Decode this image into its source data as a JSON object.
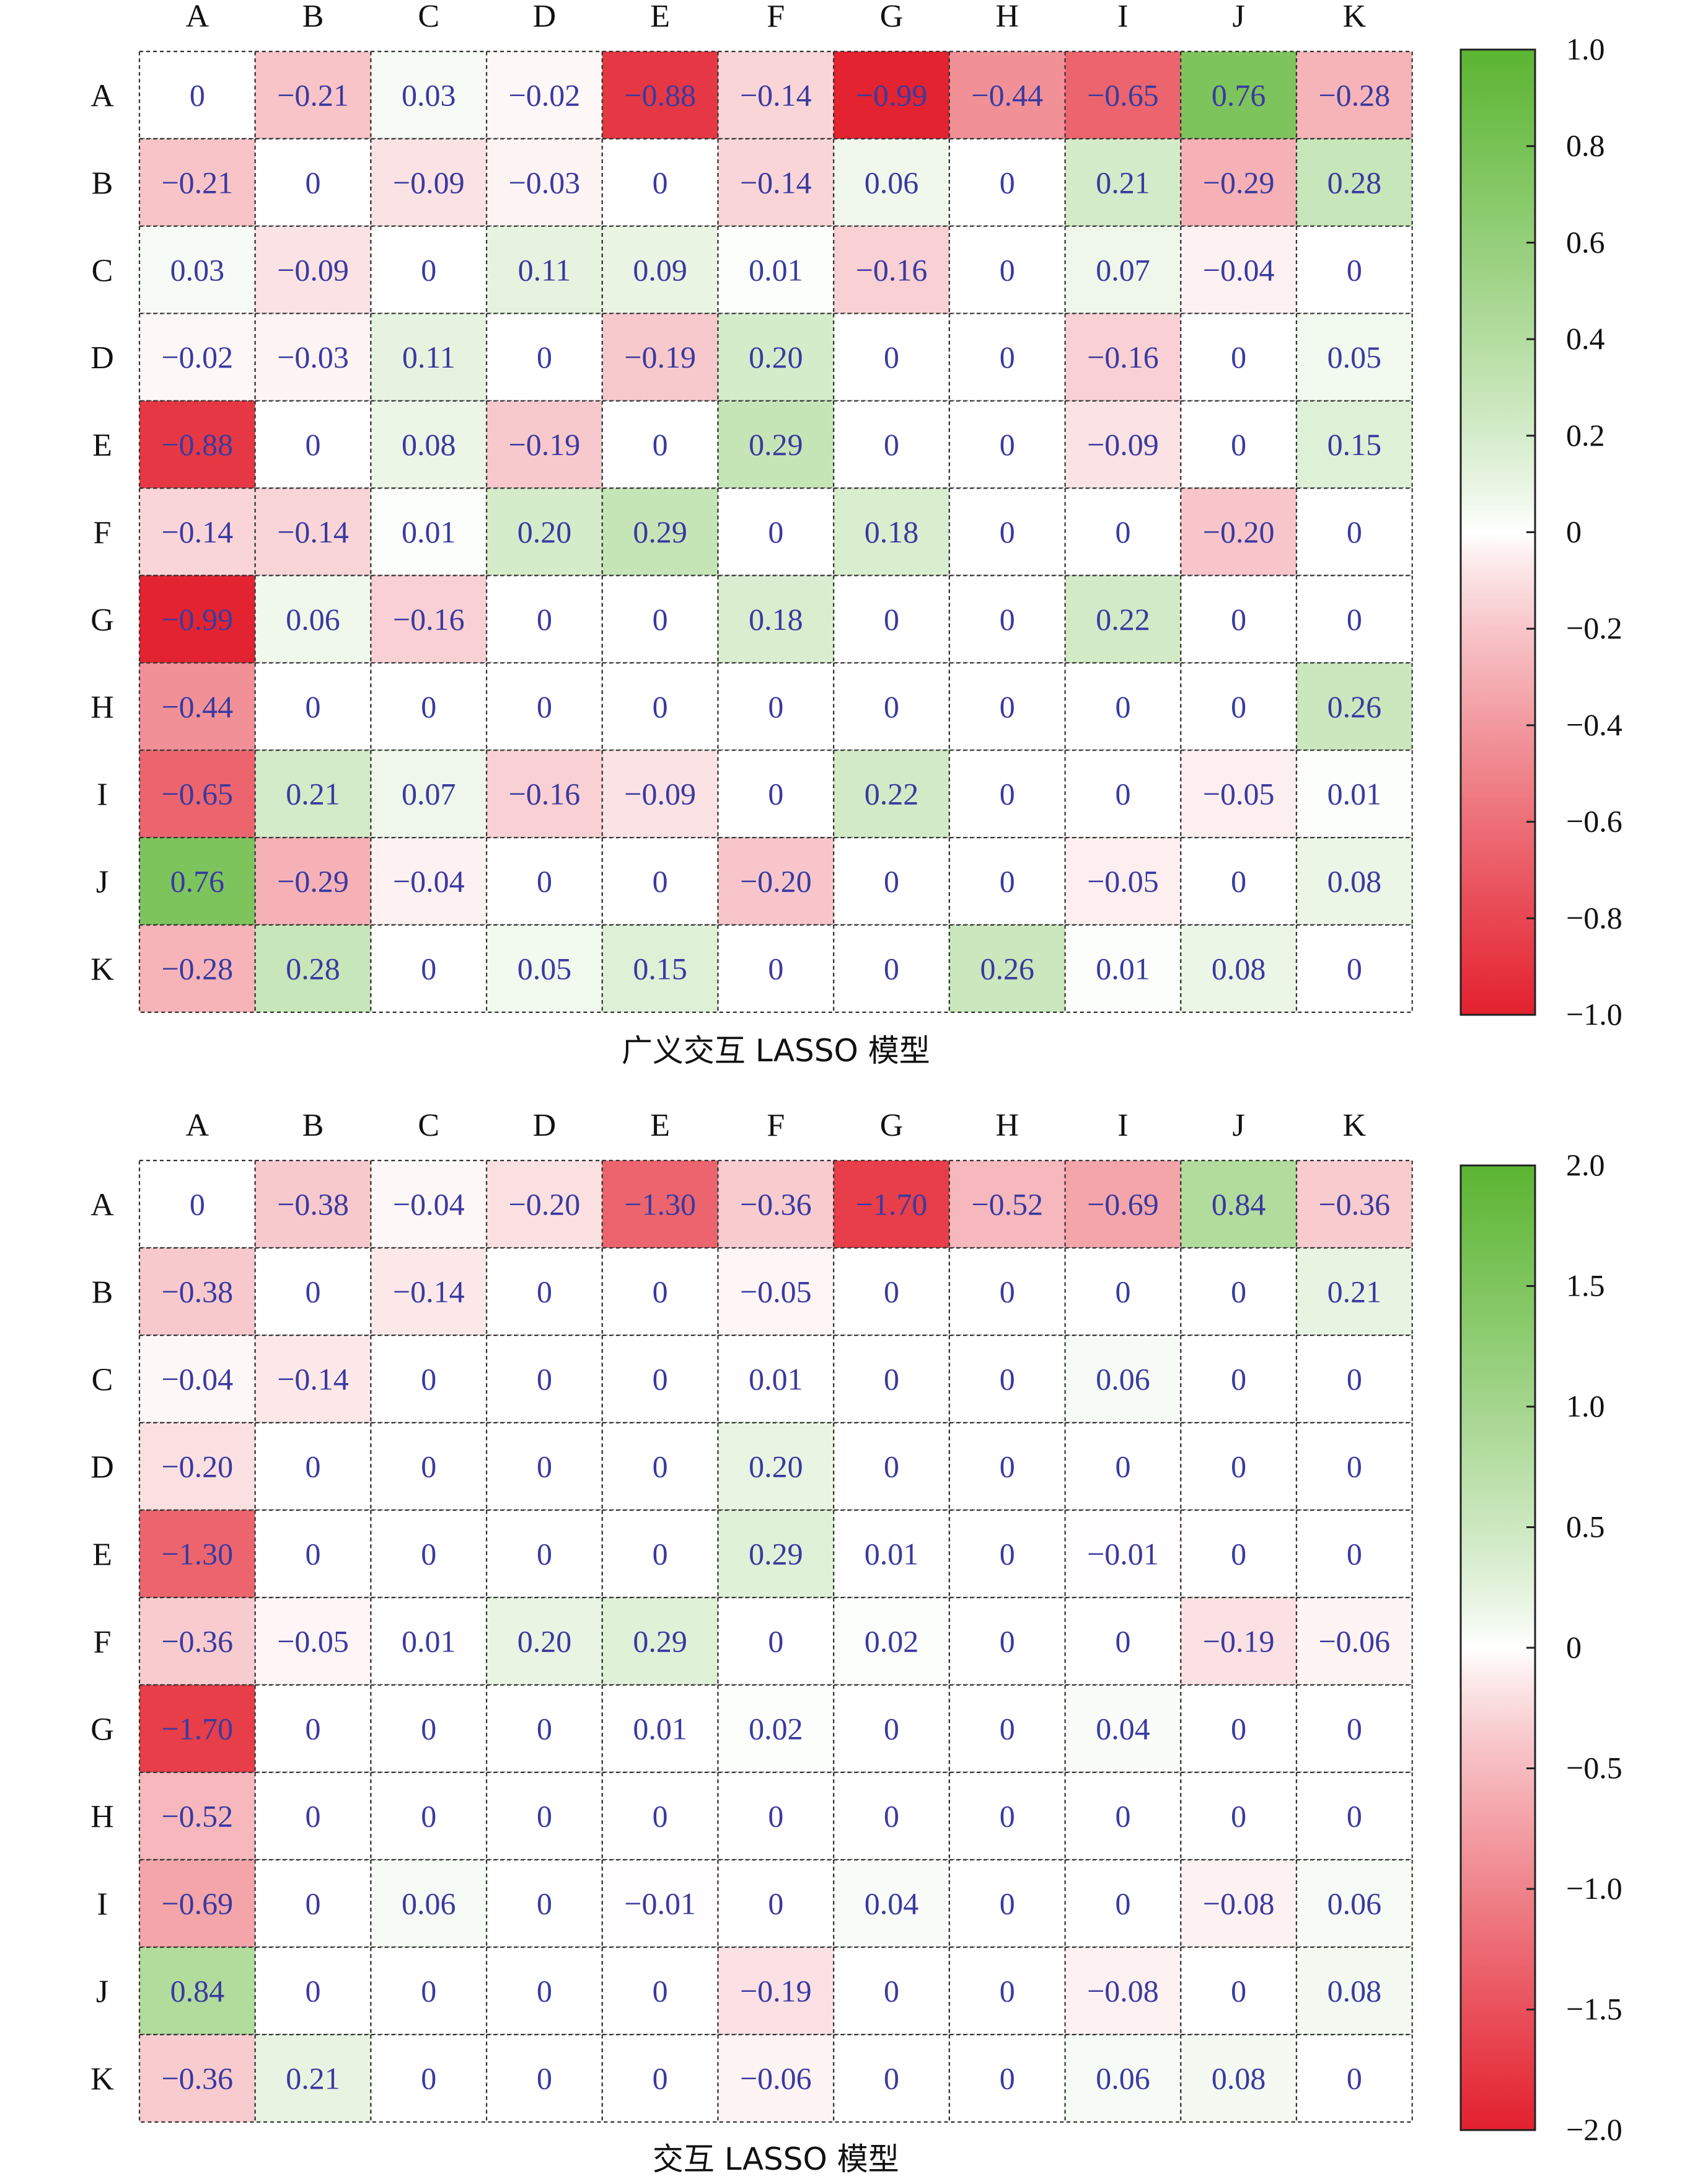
{
  "colors": {
    "positive": "#5bb531",
    "zero": "#ffffff",
    "negative": "#e3212e",
    "cell_text": "#3a3aa0",
    "grid_line": "#333333"
  },
  "chart_data": [
    {
      "type": "heatmap",
      "title": "广义交互 LASSO 模型",
      "xlabel": "",
      "ylabel": "",
      "x_categories": [
        "A",
        "B",
        "C",
        "D",
        "E",
        "F",
        "G",
        "H",
        "I",
        "J",
        "K"
      ],
      "y_categories": [
        "A",
        "B",
        "C",
        "D",
        "E",
        "F",
        "G",
        "H",
        "I",
        "J",
        "K"
      ],
      "values": [
        [
          0,
          -0.21,
          0.03,
          -0.02,
          -0.88,
          -0.14,
          -0.99,
          -0.44,
          -0.65,
          0.76,
          -0.28
        ],
        [
          -0.21,
          0,
          -0.09,
          -0.03,
          0,
          -0.14,
          0.06,
          0,
          0.21,
          -0.29,
          0.28
        ],
        [
          0.03,
          -0.09,
          0,
          0.11,
          0.09,
          0.01,
          -0.16,
          0,
          0.07,
          -0.04,
          0
        ],
        [
          -0.02,
          -0.03,
          0.11,
          0,
          -0.19,
          0.2,
          0,
          0,
          -0.16,
          0,
          0.05
        ],
        [
          -0.88,
          0,
          0.08,
          -0.19,
          0,
          0.29,
          0,
          0,
          -0.09,
          0,
          0.15
        ],
        [
          -0.14,
          -0.14,
          0.01,
          0.2,
          0.29,
          0,
          0.18,
          0,
          0,
          -0.2,
          0
        ],
        [
          -0.99,
          0.06,
          -0.16,
          0,
          0,
          0.18,
          0,
          0,
          0.22,
          0,
          0
        ],
        [
          -0.44,
          0,
          0,
          0,
          0,
          0,
          0,
          0,
          0,
          0,
          0.26
        ],
        [
          -0.65,
          0.21,
          0.07,
          -0.16,
          -0.09,
          0,
          0.22,
          0,
          0,
          -0.05,
          0.01
        ],
        [
          0.76,
          -0.29,
          -0.04,
          0,
          0,
          -0.2,
          0,
          0,
          -0.05,
          0,
          0.08
        ],
        [
          -0.28,
          0.28,
          0,
          0.05,
          0.15,
          0,
          0,
          0.26,
          0.01,
          0.08,
          0
        ]
      ],
      "cell_labels": [
        [
          "0",
          "−0.21",
          "0.03",
          "−0.02",
          "−0.88",
          "−0.14",
          "−0.99",
          "−0.44",
          "−0.65",
          "0.76",
          "−0.28"
        ],
        [
          "−0.21",
          "0",
          "−0.09",
          "−0.03",
          "0",
          "−0.14",
          "0.06",
          "0",
          "0.21",
          "−0.29",
          "0.28"
        ],
        [
          "0.03",
          "−0.09",
          "0",
          "0.11",
          "0.09",
          "0.01",
          "−0.16",
          "0",
          "0.07",
          "−0.04",
          "0"
        ],
        [
          "−0.02",
          "−0.03",
          "0.11",
          "0",
          "−0.19",
          "0.20",
          "0",
          "0",
          "−0.16",
          "0",
          "0.05"
        ],
        [
          "−0.88",
          "0",
          "0.08",
          "−0.19",
          "0",
          "0.29",
          "0",
          "0",
          "−0.09",
          "0",
          "0.15"
        ],
        [
          "−0.14",
          "−0.14",
          "0.01",
          "0.20",
          "0.29",
          "0",
          "0.18",
          "0",
          "0",
          "−0.20",
          "0"
        ],
        [
          "−0.99",
          "0.06",
          "−0.16",
          "0",
          "0",
          "0.18",
          "0",
          "0",
          "0.22",
          "0",
          "0"
        ],
        [
          "−0.44",
          "0",
          "0",
          "0",
          "0",
          "0",
          "0",
          "0",
          "0",
          "0",
          "0.26"
        ],
        [
          "−0.65",
          "0.21",
          "0.07",
          "−0.16",
          "−0.09",
          "0",
          "0.22",
          "0",
          "0",
          "−0.05",
          "0.01"
        ],
        [
          "0.76",
          "−0.29",
          "−0.04",
          "0",
          "0",
          "−0.20",
          "0",
          "0",
          "−0.05",
          "0",
          "0.08"
        ],
        [
          "−0.28",
          "0.28",
          "0",
          "0.05",
          "0.15",
          "0",
          "0",
          "0.26",
          "0.01",
          "0.08",
          "0"
        ]
      ],
      "colorbar": {
        "range": [
          -1.0,
          1.0
        ],
        "ticks": [
          1.0,
          0.8,
          0.6,
          0.4,
          0.2,
          0,
          -0.2,
          -0.4,
          -0.6,
          -0.8,
          -1.0
        ],
        "tick_labels": [
          "1.0",
          "0.8",
          "0.6",
          "0.4",
          "0.2",
          "0",
          "−0.2",
          "−0.4",
          "−0.6",
          "−0.8",
          "−1.0"
        ]
      },
      "grid": true,
      "legend": "right"
    },
    {
      "type": "heatmap",
      "title": "交互 LASSO 模型",
      "xlabel": "",
      "ylabel": "",
      "x_categories": [
        "A",
        "B",
        "C",
        "D",
        "E",
        "F",
        "G",
        "H",
        "I",
        "J",
        "K"
      ],
      "y_categories": [
        "A",
        "B",
        "C",
        "D",
        "E",
        "F",
        "G",
        "H",
        "I",
        "J",
        "K"
      ],
      "values": [
        [
          0,
          -0.38,
          -0.04,
          -0.2,
          -1.3,
          -0.36,
          -1.7,
          -0.52,
          -0.69,
          0.84,
          -0.36
        ],
        [
          -0.38,
          0,
          -0.14,
          0,
          0,
          -0.05,
          0,
          0,
          0,
          0,
          0.21
        ],
        [
          -0.04,
          -0.14,
          0,
          0,
          0,
          0.01,
          0,
          0,
          0.06,
          0,
          0
        ],
        [
          -0.2,
          0,
          0,
          0,
          0,
          0.2,
          0,
          0,
          0,
          0,
          0
        ],
        [
          -1.3,
          0,
          0,
          0,
          0,
          0.29,
          0.01,
          0,
          -0.01,
          0,
          0
        ],
        [
          -0.36,
          -0.05,
          0.01,
          0.2,
          0.29,
          0,
          0.02,
          0,
          0,
          -0.19,
          -0.06
        ],
        [
          -1.7,
          0,
          0,
          0,
          0.01,
          0.02,
          0,
          0,
          0.04,
          0,
          0
        ],
        [
          -0.52,
          0,
          0,
          0,
          0,
          0,
          0,
          0,
          0,
          0,
          0
        ],
        [
          -0.69,
          0,
          0.06,
          0,
          -0.01,
          0,
          0.04,
          0,
          0,
          -0.08,
          0.06
        ],
        [
          0.84,
          0,
          0,
          0,
          0,
          -0.19,
          0,
          0,
          -0.08,
          0,
          0.08
        ],
        [
          -0.36,
          0.21,
          0,
          0,
          0,
          -0.06,
          0,
          0,
          0.06,
          0.08,
          0
        ]
      ],
      "cell_labels": [
        [
          "0",
          "−0.38",
          "−0.04",
          "−0.20",
          "−1.30",
          "−0.36",
          "−1.70",
          "−0.52",
          "−0.69",
          "0.84",
          "−0.36"
        ],
        [
          "−0.38",
          "0",
          "−0.14",
          "0",
          "0",
          "−0.05",
          "0",
          "0",
          "0",
          "0",
          "0.21"
        ],
        [
          "−0.04",
          "−0.14",
          "0",
          "0",
          "0",
          "0.01",
          "0",
          "0",
          "0.06",
          "0",
          "0"
        ],
        [
          "−0.20",
          "0",
          "0",
          "0",
          "0",
          "0.20",
          "0",
          "0",
          "0",
          "0",
          "0"
        ],
        [
          "−1.30",
          "0",
          "0",
          "0",
          "0",
          "0.29",
          "0.01",
          "0",
          "−0.01",
          "0",
          "0"
        ],
        [
          "−0.36",
          "−0.05",
          "0.01",
          "0.20",
          "0.29",
          "0",
          "0.02",
          "0",
          "0",
          "−0.19",
          "−0.06"
        ],
        [
          "−1.70",
          "0",
          "0",
          "0",
          "0.01",
          "0.02",
          "0",
          "0",
          "0.04",
          "0",
          "0"
        ],
        [
          "−0.52",
          "0",
          "0",
          "0",
          "0",
          "0",
          "0",
          "0",
          "0",
          "0",
          "0"
        ],
        [
          "−0.69",
          "0",
          "0.06",
          "0",
          "−0.01",
          "0",
          "0.04",
          "0",
          "0",
          "−0.08",
          "0.06"
        ],
        [
          "0.84",
          "0",
          "0",
          "0",
          "0",
          "−0.19",
          "0",
          "0",
          "−0.08",
          "0",
          "0.08"
        ],
        [
          "−0.36",
          "0.21",
          "0",
          "0",
          "0",
          "−0.06",
          "0",
          "0",
          "0.06",
          "0.08",
          "0"
        ]
      ],
      "colorbar": {
        "range": [
          -2.0,
          2.0
        ],
        "ticks": [
          2.0,
          1.5,
          1.0,
          0.5,
          0,
          -0.5,
          -1.0,
          -1.5,
          -2.0
        ],
        "tick_labels": [
          "2.0",
          "1.5",
          "1.0",
          "0.5",
          "0",
          "−0.5",
          "−1.0",
          "−1.5",
          "−2.0"
        ]
      },
      "grid": true,
      "legend": "right"
    }
  ]
}
